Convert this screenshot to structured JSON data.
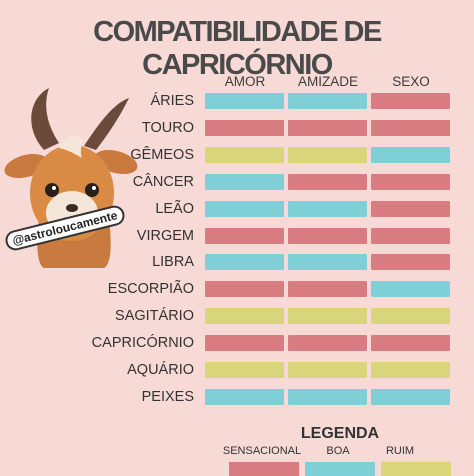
{
  "title": "COMPATIBILIDADE DE CAPRICÓRNIO",
  "columns": [
    "AMOR",
    "AMIZADE",
    "SEXO"
  ],
  "colors": {
    "sensacional": "#d87c82",
    "boa": "#7fd0d6",
    "ruim": "#d8d57a"
  },
  "rows": [
    {
      "sign": "ÁRIES",
      "values": [
        "boa",
        "boa",
        "sensacional"
      ]
    },
    {
      "sign": "TOURO",
      "values": [
        "sensacional",
        "sensacional",
        "sensacional"
      ]
    },
    {
      "sign": "GÊMEOS",
      "values": [
        "ruim",
        "ruim",
        "boa"
      ]
    },
    {
      "sign": "CÂNCER",
      "values": [
        "boa",
        "sensacional",
        "sensacional"
      ]
    },
    {
      "sign": "LEÃO",
      "values": [
        "boa",
        "boa",
        "sensacional"
      ]
    },
    {
      "sign": "VIRGEM",
      "values": [
        "sensacional",
        "sensacional",
        "sensacional"
      ]
    },
    {
      "sign": "LIBRA",
      "values": [
        "boa",
        "boa",
        "sensacional"
      ]
    },
    {
      "sign": "ESCORPIÃO",
      "values": [
        "sensacional",
        "sensacional",
        "boa"
      ]
    },
    {
      "sign": "SAGITÁRIO",
      "values": [
        "ruim",
        "ruim",
        "ruim"
      ]
    },
    {
      "sign": "CAPRICÓRNIO",
      "values": [
        "sensacional",
        "sensacional",
        "sensacional"
      ]
    },
    {
      "sign": "AQUÁRIO",
      "values": [
        "ruim",
        "ruim",
        "ruim"
      ]
    },
    {
      "sign": "PEIXES",
      "values": [
        "boa",
        "boa",
        "boa"
      ]
    }
  ],
  "legend": {
    "title": "LEGENDA",
    "items": [
      {
        "label": "SENSACIONAL",
        "key": "sensacional"
      },
      {
        "label": "BOA",
        "key": "boa"
      },
      {
        "label": "RUIM",
        "key": "ruim"
      }
    ]
  },
  "watermark": "@astroloucamente",
  "mascot_icon": "goat-mascot-icon"
}
